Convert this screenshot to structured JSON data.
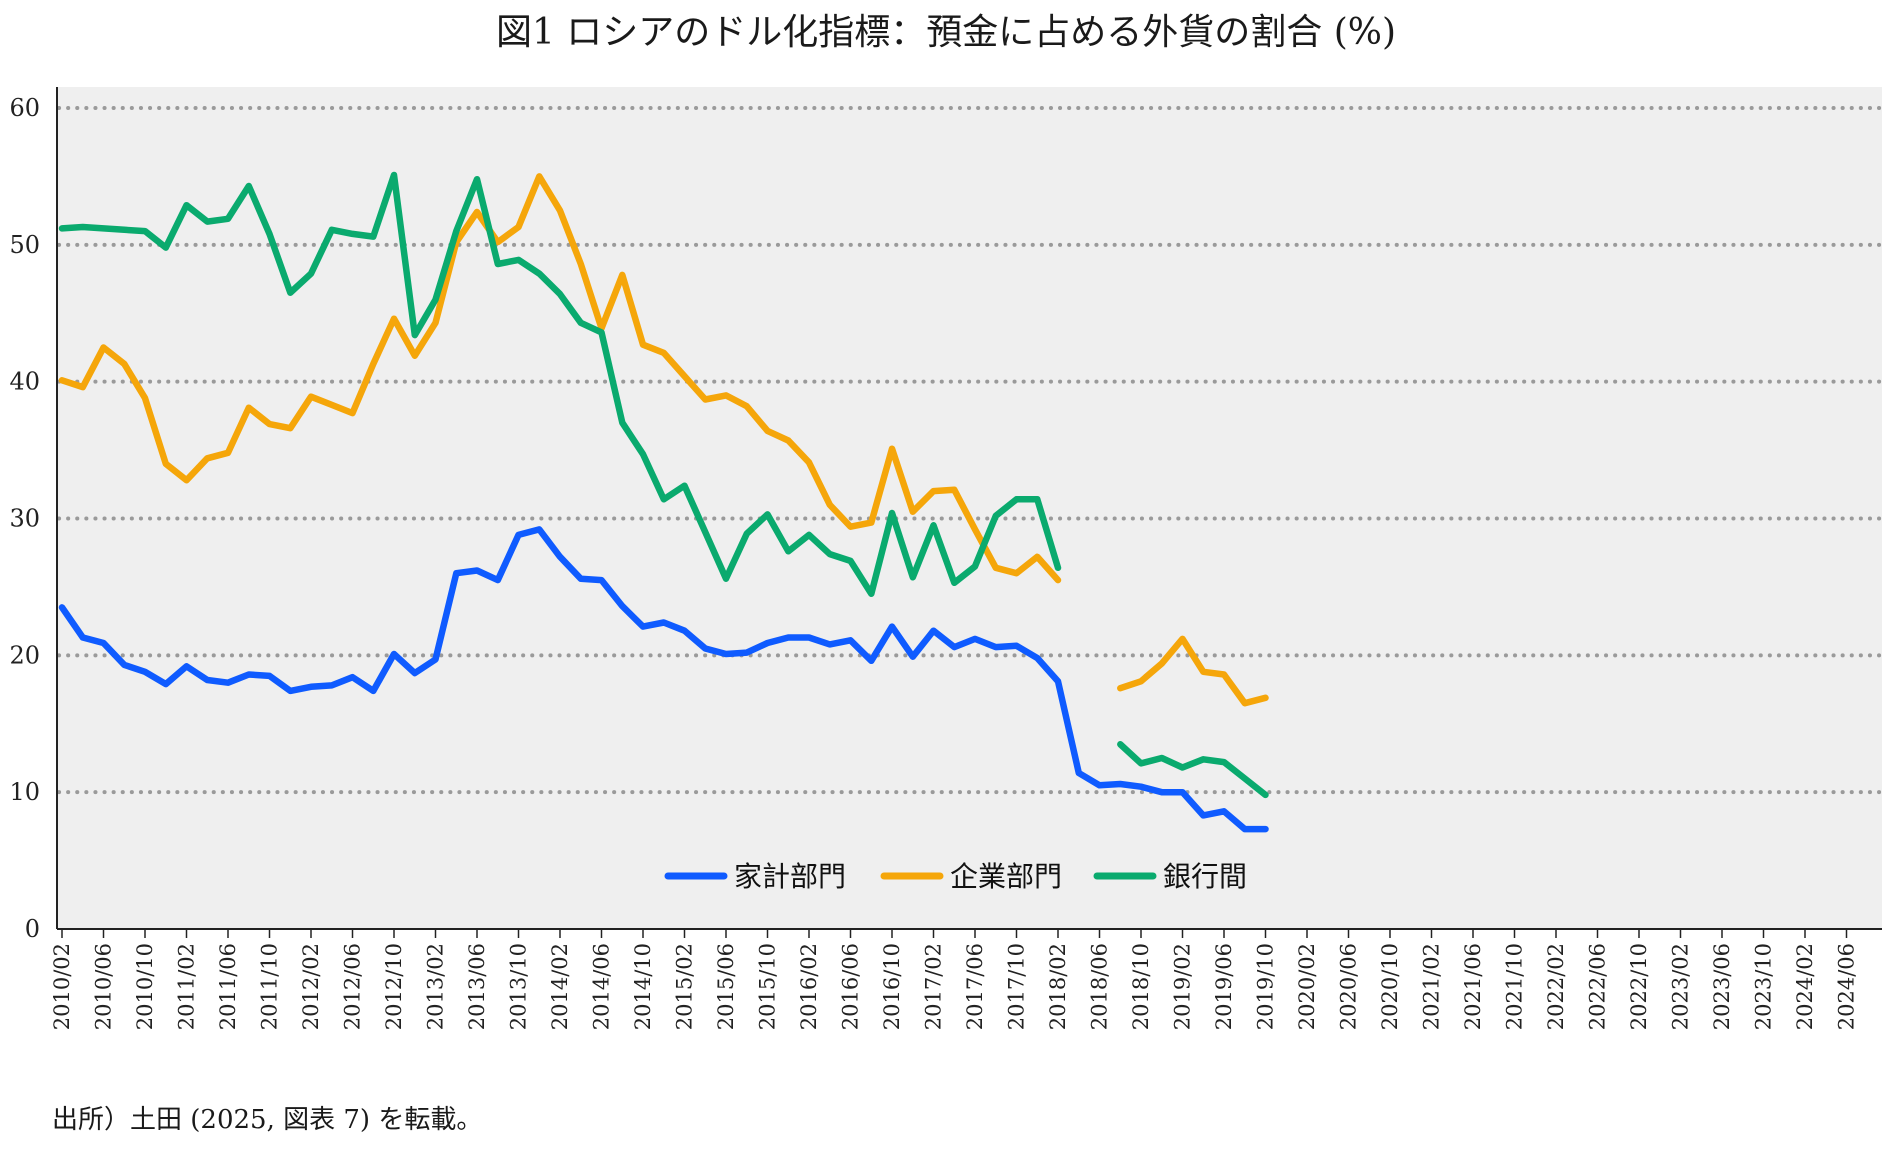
{
  "chart_data": {
    "type": "line",
    "title": "図1 ロシアのドル化指標：預金に占める外貨の割合 (%)",
    "xlabel": "",
    "ylabel": "",
    "ylim": [
      0,
      60
    ],
    "yticks": [
      0,
      10,
      20,
      30,
      40,
      50,
      60
    ],
    "grid": "horizontal-dotted",
    "legend_position": "bottom-center",
    "x": [
      "2010/02",
      "2010/04",
      "2010/06",
      "2010/08",
      "2010/10",
      "2010/12",
      "2011/02",
      "2011/04",
      "2011/06",
      "2011/08",
      "2011/10",
      "2011/12",
      "2012/02",
      "2012/04",
      "2012/06",
      "2012/08",
      "2012/10",
      "2012/12",
      "2013/02",
      "2013/04",
      "2013/06",
      "2013/08",
      "2013/10",
      "2013/12",
      "2014/02",
      "2014/04",
      "2014/06",
      "2014/08",
      "2014/10",
      "2014/12",
      "2015/02",
      "2015/04",
      "2015/06",
      "2015/08",
      "2015/10",
      "2015/12",
      "2016/02",
      "2016/04",
      "2016/06",
      "2016/08",
      "2016/10",
      "2016/12",
      "2017/02",
      "2017/04",
      "2017/06",
      "2017/08",
      "2017/10",
      "2017/12",
      "2018/02",
      "2018/04",
      "2018/06",
      "2018/08",
      "2018/10",
      "2018/12",
      "2019/02",
      "2019/04",
      "2019/06",
      "2019/08",
      "2019/10",
      "2019/12",
      "2020/02",
      "2020/04",
      "2020/06",
      "2020/08",
      "2020/10",
      "2020/12",
      "2021/02",
      "2021/04",
      "2021/06",
      "2021/08",
      "2021/10",
      "2021/12",
      "2022/02",
      "2022/04",
      "2022/06",
      "2022/08",
      "2022/10",
      "2022/12",
      "2023/02",
      "2023/04",
      "2023/06",
      "2023/08",
      "2023/10",
      "2023/12",
      "2024/02",
      "2024/04",
      "2024/06",
      "2024/08"
    ],
    "x_tick_labels": [
      "2010/02",
      "2010/06",
      "2010/10",
      "2011/02",
      "2011/06",
      "2011/10",
      "2012/02",
      "2012/06",
      "2012/10",
      "2013/02",
      "2013/06",
      "2013/10",
      "2014/02",
      "2014/06",
      "2014/10",
      "2015/02",
      "2015/06",
      "2015/10",
      "2016/02",
      "2016/06",
      "2016/10",
      "2017/02",
      "2017/06",
      "2017/10",
      "2018/02",
      "2018/06",
      "2018/10",
      "2019/02",
      "2019/06",
      "2019/10",
      "2020/02",
      "2020/06",
      "2020/10",
      "2021/02",
      "2021/06",
      "2021/10",
      "2022/02",
      "2022/06",
      "2022/10",
      "2023/02",
      "2023/06",
      "2023/10",
      "2024/02",
      "2024/06"
    ],
    "series": [
      {
        "name": "家計部門",
        "color": "#0f5bff",
        "values": [
          23.5,
          21.3,
          20.9,
          19.3,
          18.8,
          17.9,
          19.2,
          18.2,
          18.0,
          18.6,
          18.5,
          17.4,
          17.7,
          17.8,
          18.4,
          17.4,
          20.1,
          18.7,
          19.7,
          26.0,
          26.2,
          25.5,
          28.8,
          29.2,
          27.2,
          25.6,
          25.5,
          23.6,
          22.1,
          22.4,
          21.8,
          20.5,
          20.1,
          20.2,
          20.9,
          21.3,
          21.3,
          20.8,
          21.1,
          19.6,
          22.1,
          19.9,
          21.8,
          20.6,
          21.2,
          20.6,
          20.7,
          19.8,
          18.1,
          11.4,
          10.5,
          10.6,
          10.4,
          10.0,
          10.0,
          8.3,
          8.6,
          7.3,
          7.3,
          null,
          null,
          null,
          null,
          null,
          null,
          null,
          null,
          null,
          null,
          null,
          null,
          null,
          null,
          null,
          null,
          null,
          null,
          null,
          null,
          null,
          null,
          null,
          null,
          null,
          null,
          null,
          null,
          null
        ]
      },
      {
        "name": "企業部門",
        "color": "#f5a60a",
        "values": [
          40.1,
          39.6,
          42.5,
          41.3,
          38.8,
          34.0,
          32.8,
          34.4,
          34.8,
          38.1,
          36.9,
          36.6,
          38.9,
          38.3,
          37.7,
          41.3,
          44.6,
          41.9,
          44.3,
          50.2,
          52.4,
          50.2,
          51.3,
          55.0,
          52.5,
          48.6,
          43.9,
          47.8,
          42.7,
          42.1,
          40.4,
          38.7,
          39.0,
          38.2,
          36.4,
          35.7,
          34.1,
          31.0,
          29.4,
          29.7,
          35.1,
          30.5,
          32.0,
          32.1,
          29.2,
          26.4,
          26.0,
          27.2,
          25.5,
          null,
          null,
          17.6,
          18.1,
          19.4,
          21.2,
          18.8,
          18.6,
          16.5,
          16.9,
          null,
          null,
          null,
          null,
          null,
          null,
          null,
          null,
          null,
          null,
          null,
          null,
          null,
          null,
          null,
          null,
          null,
          null,
          null,
          null,
          null,
          null,
          null,
          null,
          null,
          null,
          null,
          null,
          null
        ]
      },
      {
        "name": "銀行間",
        "color": "#0aaa6e",
        "values": [
          51.2,
          51.3,
          51.2,
          51.1,
          51.0,
          49.8,
          52.9,
          51.7,
          51.9,
          54.3,
          50.8,
          46.5,
          47.9,
          51.1,
          50.8,
          50.6,
          55.1,
          43.4,
          46.0,
          51.0,
          54.8,
          48.6,
          48.9,
          47.9,
          46.4,
          44.3,
          43.6,
          37.0,
          34.7,
          31.4,
          32.4,
          29.0,
          25.6,
          28.9,
          30.3,
          27.6,
          28.8,
          27.4,
          26.9,
          24.5,
          30.4,
          25.7,
          29.5,
          25.3,
          26.5,
          30.2,
          31.4,
          31.4,
          26.4,
          null,
          null,
          13.5,
          12.1,
          12.5,
          11.8,
          12.4,
          12.2,
          11.0,
          9.8,
          null,
          null,
          null,
          null,
          null,
          null,
          null,
          null,
          null,
          null,
          null,
          null,
          null,
          null,
          null,
          null,
          null,
          null,
          null,
          null,
          null,
          null,
          null,
          null,
          null,
          null,
          null,
          null,
          null
        ]
      }
    ]
  },
  "source_note": "出所）土田 (2025, 図表 7) を転載。"
}
